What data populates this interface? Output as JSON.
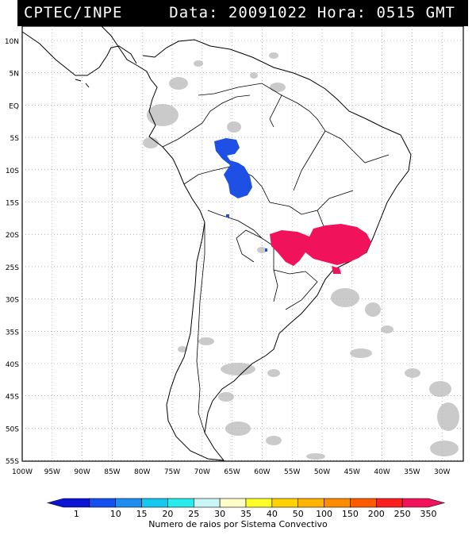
{
  "header": {
    "agency": "CPTEC/INPE",
    "datetime_label": "Data: 20091022 Hora: 0515 GMT"
  },
  "map": {
    "lat_ticks": [
      "10N",
      "5N",
      "EQ",
      "5S",
      "10S",
      "15S",
      "20S",
      "25S",
      "30S",
      "35S",
      "40S",
      "45S",
      "50S",
      "55S"
    ],
    "lon_ticks": [
      "100W",
      "95W",
      "90W",
      "85W",
      "80W",
      "75W",
      "70W",
      "65W",
      "60W",
      "55W",
      "50W",
      "45W",
      "40W",
      "35W",
      "30W"
    ],
    "grid": true,
    "cloud_color": "#b9b9b9",
    "systems": [
      {
        "region": "Amazon (Brazil/Peru border)",
        "color": "#1e50e6"
      },
      {
        "region": "SE Brazil / Paraguay",
        "color": "#f0125a"
      }
    ]
  },
  "legend": {
    "values": [
      "1",
      "10",
      "15",
      "20",
      "25",
      "30",
      "35",
      "40",
      "50",
      "100",
      "150",
      "200",
      "250",
      "350"
    ],
    "colors": [
      "#0a14d2",
      "#1450f0",
      "#1e8cf0",
      "#14c8f0",
      "#28ebeb",
      "#c8f5f5",
      "#ffffc8",
      "#ffff28",
      "#ffd200",
      "#ffb400",
      "#ff8c00",
      "#ff5a00",
      "#ff1e1e",
      "#f0125a"
    ],
    "caption": "Numero de raios por Sistema Convectivo"
  }
}
